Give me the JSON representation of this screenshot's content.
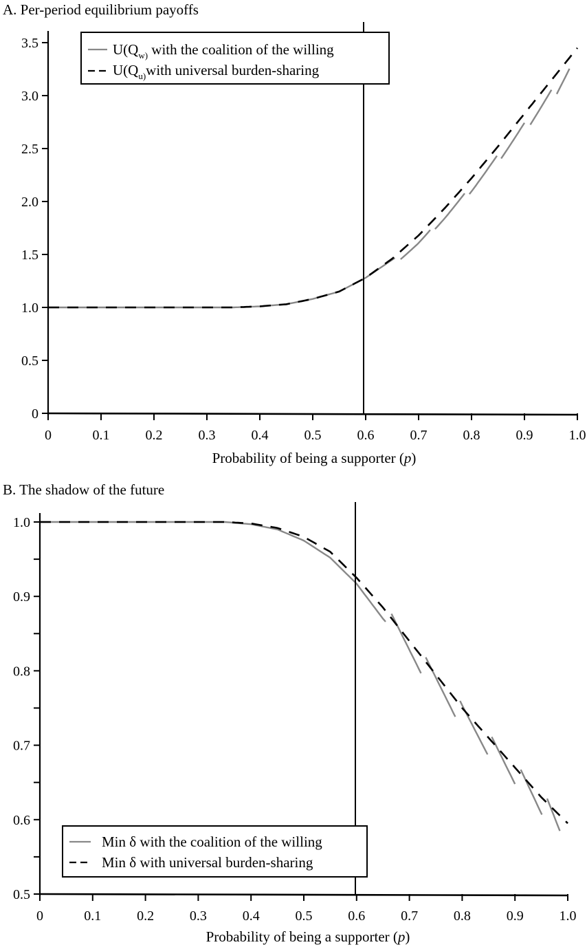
{
  "panels": {
    "a": {
      "title": "A. Per-period equilibrium payoffs",
      "xlabel": "Probability of being a supporter (p)",
      "xlabel_prefix": "Probability of being a supporter (",
      "xlabel_var": "p",
      "xlabel_suffix": ")",
      "legend": {
        "willing_main": "U(Q",
        "willing_sub": "w)",
        "willing_rest": " with the coalition of the willing",
        "universal_main": "U(Q",
        "universal_sub": "u)",
        "universal_rest": "with universal burden-sharing"
      }
    },
    "b": {
      "title": "B. The shadow of the future",
      "xlabel_prefix": "Probability of being a supporter (",
      "xlabel_var": "p",
      "xlabel_suffix": ")",
      "legend": {
        "willing": "Min δ with the coalition of the willing",
        "universal": "Min δ with universal burden-sharing"
      }
    }
  },
  "colors": {
    "willing": "#888888",
    "universal": "#000000",
    "axis": "#000000"
  },
  "chart_data": [
    {
      "type": "line",
      "title": "A. Per-period equilibrium payoffs",
      "xlabel": "Probability of being a supporter (p)",
      "ylabel": "",
      "xlim": [
        0,
        1.0
      ],
      "ylim": [
        0,
        3.5
      ],
      "xticks": [
        "0",
        "0.1",
        "0.2",
        "0.3",
        "0.4",
        "0.5",
        "0.6",
        "0.7",
        "0.8",
        "0.9",
        "1.0"
      ],
      "yticks": [
        "0",
        "0.5",
        "1.0",
        "1.5",
        "2.0",
        "2.5",
        "3.0",
        "3.5"
      ],
      "grid": false,
      "legend_position": "upper-left",
      "vertical_reference_line_x": 0.6,
      "x": [
        0,
        0.1,
        0.2,
        0.3,
        0.35,
        0.4,
        0.45,
        0.5,
        0.55,
        0.6,
        0.65,
        0.7,
        0.75,
        0.8,
        0.85,
        0.9,
        0.95,
        1.0
      ],
      "series": [
        {
          "name": "U(Qw) with the coalition of the willing",
          "style": "solid-gray-sawtooth",
          "values": [
            1.0,
            1.0,
            1.0,
            1.0,
            1.0,
            1.01,
            1.03,
            1.08,
            1.15,
            1.28,
            1.45,
            1.62,
            1.8,
            2.05,
            2.3,
            2.6,
            2.95,
            3.35
          ]
        },
        {
          "name": "U(Qu) with universal burden-sharing",
          "style": "dashed-black",
          "values": [
            1.0,
            1.0,
            1.0,
            1.0,
            1.0,
            1.01,
            1.03,
            1.08,
            1.15,
            1.28,
            1.46,
            1.68,
            1.94,
            2.22,
            2.52,
            2.83,
            3.14,
            3.45
          ]
        }
      ]
    },
    {
      "type": "line",
      "title": "B. The shadow of the future",
      "xlabel": "Probability of being a supporter (p)",
      "ylabel": "",
      "xlim": [
        0,
        1.0
      ],
      "ylim": [
        0.5,
        1.0
      ],
      "xticks": [
        "0",
        "0.1",
        "0.2",
        "0.3",
        "0.4",
        "0.5",
        "0.6",
        "0.7",
        "0.8",
        "0.9",
        "1.0"
      ],
      "yticks": [
        "0.5",
        "0.6",
        "0.7",
        "0.8",
        "0.9",
        "1.0"
      ],
      "grid": false,
      "legend_position": "lower-left",
      "vertical_reference_line_x": 0.6,
      "x": [
        0,
        0.1,
        0.2,
        0.3,
        0.35,
        0.4,
        0.45,
        0.5,
        0.55,
        0.6,
        0.65,
        0.7,
        0.75,
        0.8,
        0.85,
        0.9,
        0.95,
        1.0
      ],
      "series": [
        {
          "name": "Min δ with the coalition of the willing",
          "style": "solid-gray-sawtooth",
          "values": [
            1.0,
            1.0,
            1.0,
            1.0,
            1.0,
            0.997,
            0.99,
            0.975,
            0.952,
            0.917,
            0.87,
            0.83,
            0.78,
            0.74,
            0.7,
            0.655,
            0.61,
            0.56
          ]
        },
        {
          "name": "Min δ with universal burden-sharing",
          "style": "dashed-black",
          "values": [
            1.0,
            1.0,
            1.0,
            1.0,
            1.0,
            0.998,
            0.992,
            0.98,
            0.96,
            0.925,
            0.885,
            0.84,
            0.795,
            0.75,
            0.71,
            0.67,
            0.63,
            0.595
          ]
        }
      ]
    }
  ]
}
